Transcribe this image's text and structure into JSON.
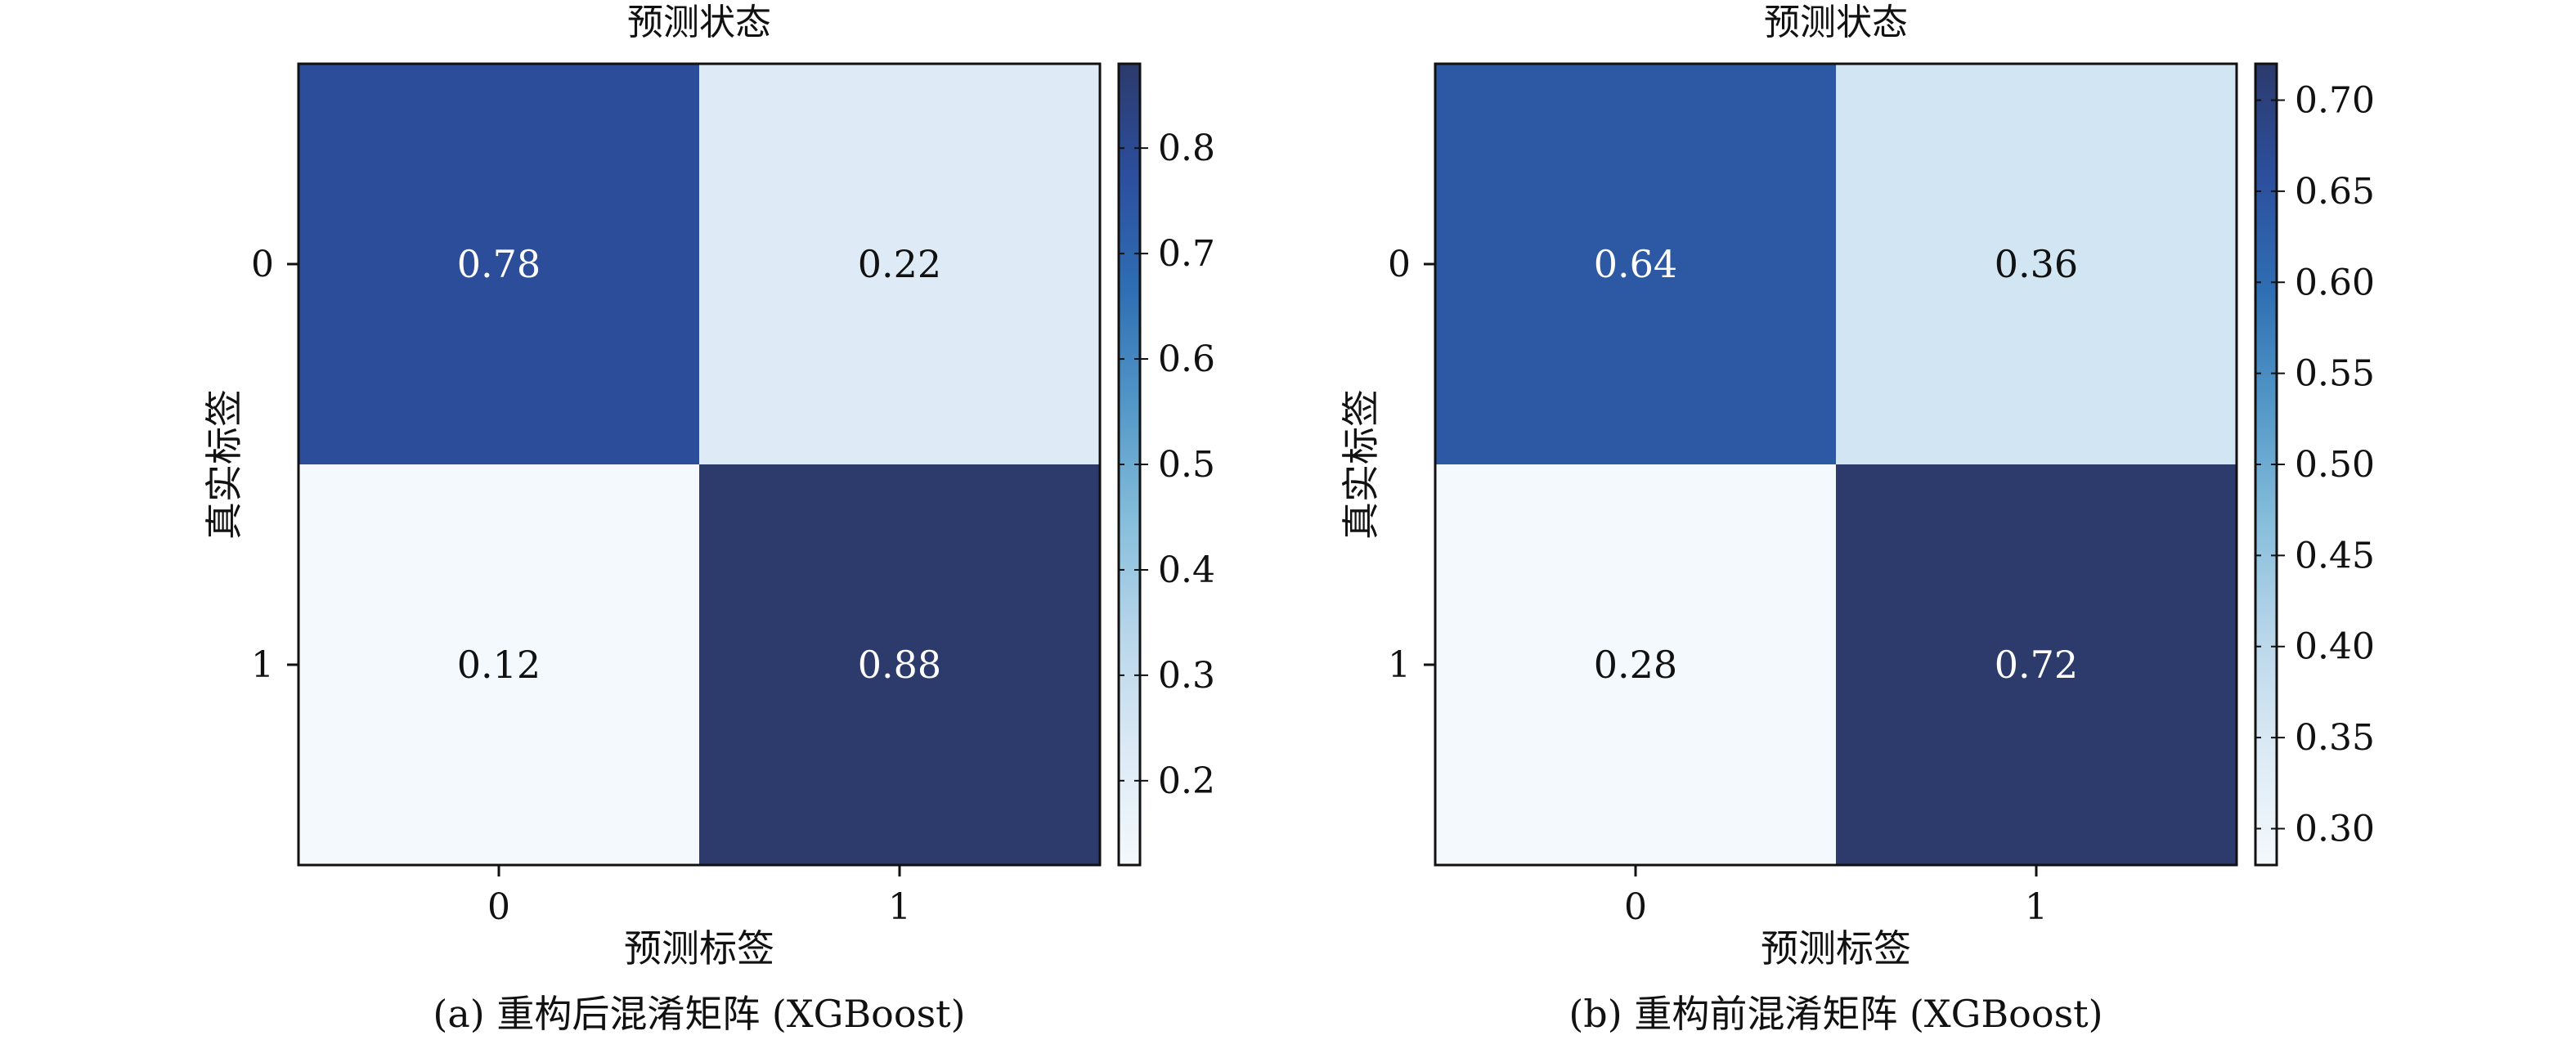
{
  "chart_data": [
    {
      "type": "heatmap",
      "top_label": "预测状态",
      "xlabel": "预测标签",
      "ylabel": "真实标签",
      "caption": "(a) 重构后混淆矩阵 (XGBoost)",
      "x_categories": [
        "0",
        "1"
      ],
      "y_categories": [
        "0",
        "1"
      ],
      "values": [
        [
          0.78,
          0.22
        ],
        [
          0.12,
          0.88
        ]
      ],
      "value_labels": [
        [
          "0.78",
          "0.22"
        ],
        [
          "0.12",
          "0.88"
        ]
      ],
      "colorbar": {
        "range": [
          0.12,
          0.88
        ],
        "ticks": [
          0.2,
          0.3,
          0.4,
          0.5,
          0.6,
          0.7,
          0.8
        ],
        "tick_labels": [
          "0.2",
          "0.3",
          "0.4",
          "0.5",
          "0.6",
          "0.7",
          "0.8"
        ]
      }
    },
    {
      "type": "heatmap",
      "top_label": "预测状态",
      "xlabel": "预测标签",
      "ylabel": "真实标签",
      "caption": "(b) 重构前混淆矩阵 (XGBoost)",
      "x_categories": [
        "0",
        "1"
      ],
      "y_categories": [
        "0",
        "1"
      ],
      "values": [
        [
          0.64,
          0.36
        ],
        [
          0.28,
          0.72
        ]
      ],
      "value_labels": [
        [
          "0.64",
          "0.36"
        ],
        [
          "0.28",
          "0.72"
        ]
      ],
      "colorbar": {
        "range": [
          0.28,
          0.72
        ],
        "ticks": [
          0.3,
          0.35,
          0.4,
          0.45,
          0.5,
          0.55,
          0.6,
          0.65,
          0.7
        ],
        "tick_labels": [
          "0.30",
          "0.35",
          "0.40",
          "0.45",
          "0.50",
          "0.55",
          "0.60",
          "0.65",
          "0.70"
        ]
      }
    }
  ],
  "colormap": {
    "name": "Blues",
    "stops": [
      "#f4f9fd",
      "#dceaf5",
      "#b9d6ea",
      "#86bedb",
      "#5498c8",
      "#2f6fb3",
      "#2c4f9e",
      "#2c3a6c"
    ]
  }
}
